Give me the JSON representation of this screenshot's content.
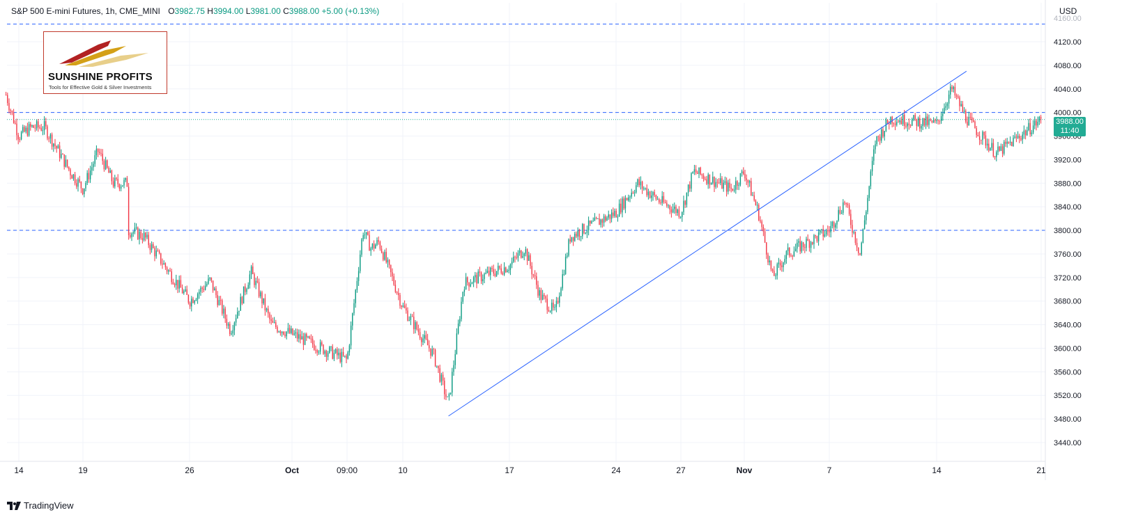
{
  "header": {
    "symbol": "S&P 500 E-mini Futures, 1h, CME_MINI",
    "open_label": "O",
    "open_value": "3982.75",
    "high_label": "H",
    "high_value": "3994.00",
    "low_label": "L",
    "low_value": "3981.00",
    "close_label": "C",
    "close_value": "3988.00",
    "change": "+5.00 (+0.13%)"
  },
  "logo": {
    "title": "SUNSHINE PROFITS",
    "subtitle": "Tools for Effective Gold & Silver Investments"
  },
  "axis": {
    "currency": "USD",
    "last_price": "3988.00",
    "countdown": "11:40"
  },
  "brand": {
    "label": "TradingView"
  },
  "colors": {
    "up": "#089981",
    "down": "#f23645",
    "level_line": "#2962ff",
    "trend_line": "#2962ff",
    "price_tag": "#22ab94",
    "grid": "#f0f3fa"
  },
  "chart_data": {
    "type": "candlestick",
    "title": "S&P 500 E-mini Futures, 1h, CME_MINI",
    "y_range": [
      3400,
      4160
    ],
    "y_ticks": [
      3440,
      3480,
      3520,
      3560,
      3600,
      3640,
      3680,
      3720,
      3760,
      3800,
      3840,
      3880,
      3920,
      3960,
      4000,
      4040,
      4080,
      4120
    ],
    "x_ticks": [
      "14",
      "19",
      "26",
      "Oct",
      "09:00",
      "10",
      "17",
      "24",
      "27",
      "Nov",
      "7",
      "14",
      "21"
    ],
    "grid": true,
    "horizontal_levels": [
      3800,
      4000,
      4150
    ],
    "last_close_level": 3988,
    "trend_line": {
      "from": [
        "Oct 13",
        3485
      ],
      "to": [
        "Nov 16",
        4070
      ]
    },
    "price_path": [
      [
        "Sep 13",
        4030
      ],
      [
        "Sep 14",
        3960
      ],
      [
        "Sep 15",
        3975
      ],
      [
        "Sep 16",
        3975
      ],
      [
        "Sep 18",
        3900
      ],
      [
        "Sep 19",
        3870
      ],
      [
        "Sep 20",
        3935
      ],
      [
        "Sep 21",
        3880
      ],
      [
        "Sep 22",
        3880
      ],
      [
        "Sep 22",
        3800
      ],
      [
        "Sep 23",
        3790
      ],
      [
        "Sep 26",
        3680
      ],
      [
        "Sep 27",
        3715
      ],
      [
        "Sep 28",
        3630
      ],
      [
        "Sep 29",
        3730
      ],
      [
        "Sep 30",
        3640
      ],
      [
        "Oct 3",
        3580
      ],
      [
        "Oct 4",
        3690
      ],
      [
        "Oct 5",
        3800
      ],
      [
        "Oct 6",
        3770
      ],
      [
        "Oct 7",
        3780
      ],
      [
        "Oct 10",
        3670
      ],
      [
        "Oct 11",
        3630
      ],
      [
        "Oct 12",
        3590
      ],
      [
        "Oct 13",
        3505
      ],
      [
        "Oct 14",
        3710
      ],
      [
        "Oct 17",
        3740
      ],
      [
        "Oct 18",
        3770
      ],
      [
        "Oct 19",
        3690
      ],
      [
        "Oct 20",
        3660
      ],
      [
        "Oct 21",
        3790
      ],
      [
        "Oct 24",
        3830
      ],
      [
        "Oct 25",
        3880
      ],
      [
        "Oct 26",
        3850
      ],
      [
        "Oct 27",
        3830
      ],
      [
        "Oct 28",
        3900
      ],
      [
        "Oct 31",
        3870
      ],
      [
        "Nov 1",
        3900
      ],
      [
        "Nov 2",
        3830
      ],
      [
        "Nov 3",
        3720
      ],
      [
        "Nov 4",
        3760
      ],
      [
        "Nov 7",
        3800
      ],
      [
        "Nov 8",
        3850
      ],
      [
        "Nov 9",
        3760
      ],
      [
        "Nov 10",
        3950
      ],
      [
        "Nov 11",
        3990
      ],
      [
        "Nov 14",
        3980
      ],
      [
        "Nov 15",
        4040
      ],
      [
        "Nov 16",
        3990
      ],
      [
        "Nov 17",
        3960
      ],
      [
        "Nov 18",
        3930
      ],
      [
        "Nov 21",
        3988
      ]
    ]
  }
}
